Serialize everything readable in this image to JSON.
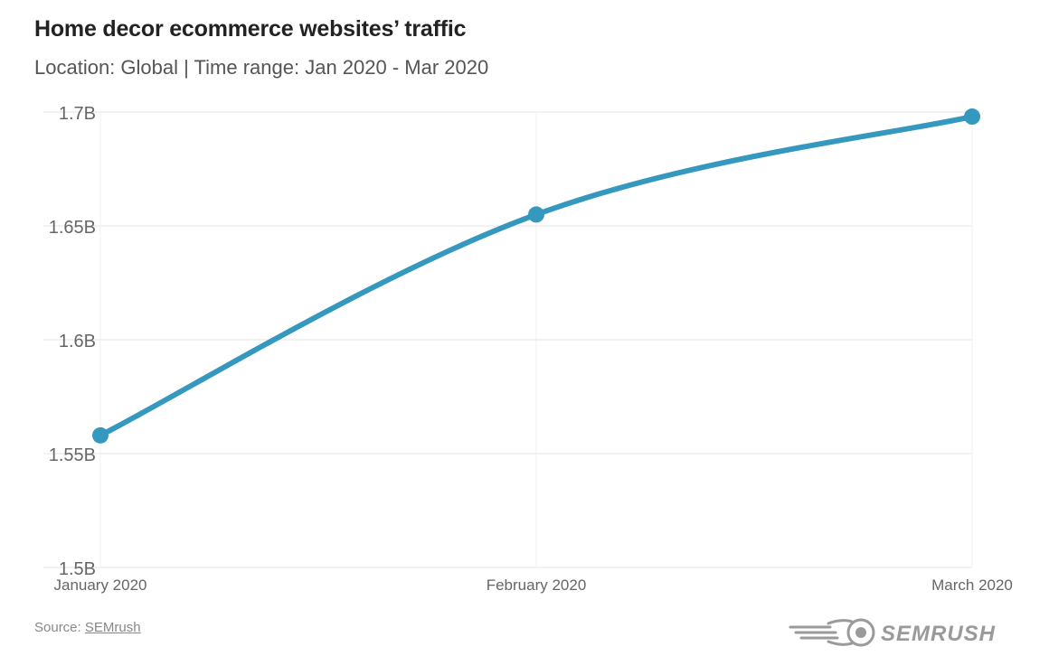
{
  "header": {
    "title": "Home decor ecommerce websites’ traffic",
    "subtitle": "Location: Global | Time range: Jan 2020 - Mar 2020"
  },
  "footer": {
    "source_prefix": "Source: ",
    "source_link": "SEMrush",
    "logo_text": "SEMRUSH"
  },
  "colors": {
    "line": "#3598BF",
    "grid": "#e6e6e6",
    "axis_text": "#666666"
  },
  "chart_data": {
    "type": "line",
    "title": "Home decor ecommerce websites’ traffic",
    "subtitle": "Location: Global | Time range: Jan 2020 - Mar 2020",
    "categories": [
      "January 2020",
      "February 2020",
      "March 2020"
    ],
    "series": [
      {
        "values": [
          1.558,
          1.655,
          1.698
        ]
      }
    ],
    "unit_suffix": "B",
    "ylim": [
      1.5,
      1.7
    ],
    "yticks": [
      1.5,
      1.55,
      1.6,
      1.65,
      1.7
    ],
    "ytick_labels": [
      "1.5B",
      "1.55B",
      "1.6B",
      "1.65B",
      "1.7B"
    ],
    "grid": true,
    "legend": "none",
    "smooth": true
  }
}
